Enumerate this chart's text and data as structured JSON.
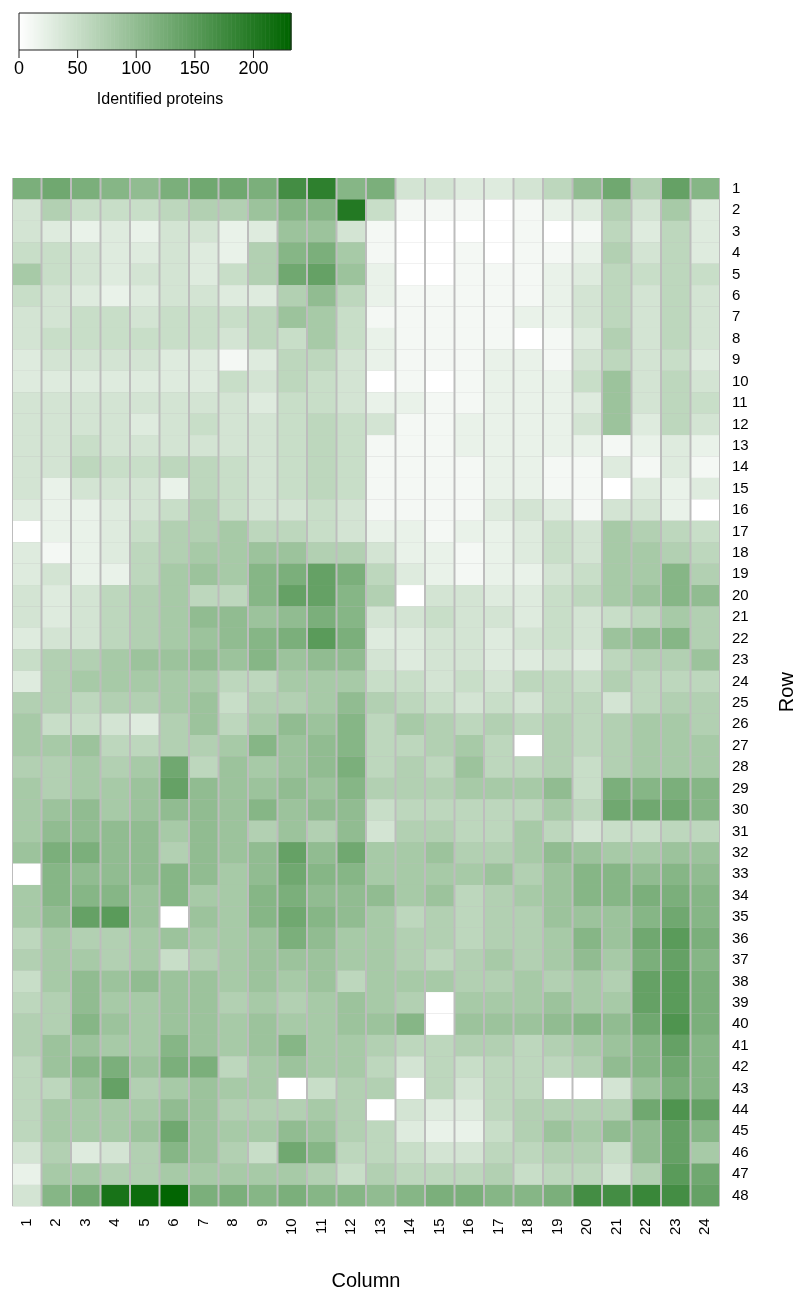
{
  "chart_data": {
    "type": "heatmap",
    "xlabel": "Column",
    "ylabel": "Row",
    "clabel": "Identified proteins",
    "clim": [
      0,
      232
    ],
    "cticks": [
      0,
      50,
      100,
      150,
      200
    ],
    "categories": [
      "1",
      "2",
      "3",
      "4",
      "5",
      "6",
      "7",
      "8",
      "9",
      "10",
      "11",
      "12",
      "13",
      "14",
      "15",
      "16",
      "17",
      "18",
      "19",
      "20",
      "21",
      "22",
      "23",
      "24"
    ],
    "y_categories": [
      "1",
      "2",
      "3",
      "4",
      "5",
      "6",
      "7",
      "8",
      "9",
      "10",
      "11",
      "12",
      "13",
      "14",
      "15",
      "16",
      "17",
      "18",
      "19",
      "20",
      "21",
      "22",
      "23",
      "24",
      "25",
      "26",
      "27",
      "28",
      "29",
      "30",
      "31",
      "32",
      "33",
      "34",
      "35",
      "36",
      "37",
      "38",
      "39",
      "40",
      "41",
      "42",
      "43",
      "44",
      "45",
      "46",
      "47",
      "48"
    ],
    "cells": [
      [
        120,
        130,
        120,
        110,
        100,
        120,
        130,
        130,
        120,
        170,
        190,
        110,
        120,
        40,
        40,
        30,
        30,
        40,
        60,
        100,
        130,
        70,
        140,
        110
      ],
      [
        40,
        70,
        50,
        50,
        50,
        60,
        70,
        70,
        90,
        110,
        110,
        200,
        50,
        10,
        10,
        10,
        0,
        10,
        20,
        30,
        70,
        40,
        80,
        30
      ],
      [
        40,
        30,
        20,
        30,
        20,
        40,
        40,
        20,
        30,
        90,
        90,
        40,
        10,
        0,
        0,
        0,
        0,
        10,
        0,
        10,
        60,
        30,
        60,
        30
      ],
      [
        50,
        50,
        40,
        30,
        30,
        40,
        30,
        20,
        70,
        110,
        120,
        80,
        10,
        0,
        0,
        10,
        0,
        10,
        10,
        20,
        70,
        40,
        60,
        30
      ],
      [
        80,
        50,
        40,
        30,
        40,
        40,
        30,
        50,
        70,
        130,
        140,
        90,
        20,
        0,
        0,
        10,
        10,
        10,
        20,
        30,
        60,
        50,
        60,
        50
      ],
      [
        50,
        40,
        30,
        20,
        30,
        40,
        40,
        30,
        30,
        70,
        100,
        60,
        20,
        10,
        10,
        10,
        10,
        10,
        20,
        40,
        60,
        40,
        60,
        40
      ],
      [
        40,
        40,
        50,
        50,
        40,
        50,
        50,
        50,
        60,
        90,
        80,
        50,
        10,
        10,
        10,
        10,
        10,
        20,
        20,
        40,
        60,
        40,
        60,
        40
      ],
      [
        40,
        50,
        50,
        50,
        50,
        50,
        50,
        40,
        60,
        50,
        80,
        50,
        20,
        10,
        10,
        10,
        10,
        0,
        10,
        30,
        70,
        40,
        60,
        40
      ],
      [
        30,
        40,
        40,
        40,
        40,
        30,
        30,
        10,
        30,
        60,
        60,
        40,
        20,
        10,
        10,
        10,
        20,
        20,
        10,
        40,
        60,
        40,
        50,
        30
      ],
      [
        30,
        30,
        30,
        30,
        30,
        30,
        30,
        50,
        40,
        60,
        50,
        40,
        0,
        10,
        0,
        10,
        20,
        20,
        20,
        50,
        90,
        40,
        60,
        40
      ],
      [
        40,
        40,
        40,
        40,
        40,
        40,
        40,
        40,
        30,
        50,
        50,
        40,
        20,
        20,
        10,
        10,
        20,
        20,
        20,
        30,
        90,
        40,
        60,
        50
      ],
      [
        40,
        40,
        40,
        40,
        30,
        40,
        50,
        40,
        40,
        50,
        60,
        50,
        40,
        10,
        10,
        20,
        20,
        20,
        20,
        40,
        90,
        30,
        60,
        40
      ],
      [
        40,
        40,
        50,
        40,
        40,
        40,
        40,
        40,
        40,
        50,
        60,
        50,
        10,
        10,
        10,
        20,
        20,
        20,
        20,
        20,
        10,
        20,
        30,
        20
      ],
      [
        40,
        40,
        60,
        50,
        50,
        60,
        60,
        50,
        40,
        50,
        60,
        50,
        10,
        10,
        10,
        10,
        20,
        20,
        10,
        10,
        30,
        10,
        30,
        10
      ],
      [
        40,
        20,
        40,
        40,
        40,
        20,
        60,
        50,
        40,
        50,
        60,
        50,
        10,
        10,
        10,
        10,
        20,
        20,
        10,
        10,
        0,
        30,
        20,
        30
      ],
      [
        30,
        20,
        20,
        30,
        40,
        50,
        70,
        50,
        40,
        40,
        50,
        40,
        10,
        10,
        10,
        10,
        30,
        40,
        30,
        10,
        40,
        40,
        20,
        0
      ],
      [
        0,
        20,
        20,
        30,
        50,
        70,
        70,
        80,
        60,
        60,
        50,
        40,
        20,
        20,
        10,
        20,
        20,
        30,
        50,
        40,
        80,
        70,
        60,
        50
      ],
      [
        30,
        10,
        20,
        30,
        60,
        70,
        80,
        80,
        90,
        90,
        70,
        70,
        40,
        20,
        20,
        10,
        20,
        30,
        50,
        40,
        80,
        80,
        70,
        60
      ],
      [
        30,
        40,
        20,
        20,
        60,
        80,
        90,
        80,
        110,
        120,
        140,
        120,
        60,
        30,
        20,
        10,
        20,
        20,
        40,
        50,
        80,
        80,
        110,
        70
      ],
      [
        40,
        30,
        40,
        60,
        70,
        80,
        60,
        60,
        110,
        140,
        140,
        110,
        70,
        0,
        40,
        40,
        30,
        30,
        50,
        60,
        80,
        90,
        110,
        100
      ],
      [
        40,
        30,
        40,
        60,
        70,
        80,
        100,
        100,
        90,
        100,
        120,
        110,
        40,
        40,
        50,
        40,
        40,
        30,
        50,
        40,
        50,
        60,
        80,
        70
      ],
      [
        30,
        40,
        40,
        60,
        70,
        80,
        90,
        100,
        110,
        120,
        150,
        120,
        30,
        30,
        40,
        40,
        30,
        40,
        50,
        40,
        90,
        100,
        110,
        70
      ],
      [
        50,
        70,
        70,
        80,
        90,
        90,
        100,
        90,
        110,
        90,
        100,
        100,
        40,
        30,
        40,
        40,
        30,
        30,
        40,
        30,
        60,
        70,
        70,
        90
      ],
      [
        30,
        70,
        80,
        80,
        80,
        80,
        80,
        60,
        60,
        80,
        80,
        80,
        50,
        50,
        40,
        50,
        40,
        60,
        60,
        50,
        70,
        60,
        60,
        60
      ],
      [
        70,
        70,
        60,
        70,
        70,
        80,
        90,
        50,
        70,
        70,
        80,
        100,
        70,
        60,
        50,
        40,
        50,
        40,
        60,
        60,
        40,
        60,
        70,
        70
      ],
      [
        80,
        50,
        50,
        40,
        30,
        70,
        90,
        60,
        80,
        100,
        90,
        110,
        60,
        80,
        70,
        60,
        70,
        60,
        70,
        60,
        70,
        80,
        80,
        70
      ],
      [
        80,
        80,
        90,
        60,
        60,
        70,
        70,
        80,
        110,
        90,
        100,
        110,
        60,
        60,
        70,
        80,
        60,
        0,
        70,
        60,
        70,
        80,
        80,
        80
      ],
      [
        70,
        70,
        80,
        70,
        80,
        130,
        60,
        90,
        80,
        90,
        100,
        120,
        60,
        70,
        60,
        90,
        60,
        60,
        70,
        50,
        70,
        80,
        80,
        80
      ],
      [
        80,
        70,
        80,
        80,
        90,
        140,
        100,
        90,
        90,
        100,
        90,
        110,
        70,
        70,
        70,
        80,
        80,
        80,
        100,
        50,
        120,
        110,
        120,
        110
      ],
      [
        80,
        90,
        100,
        80,
        90,
        100,
        100,
        90,
        110,
        90,
        100,
        100,
        50,
        60,
        60,
        60,
        60,
        60,
        80,
        60,
        130,
        130,
        130,
        110
      ],
      [
        80,
        100,
        100,
        100,
        100,
        80,
        100,
        90,
        70,
        90,
        70,
        100,
        40,
        70,
        70,
        60,
        60,
        80,
        60,
        40,
        50,
        50,
        60,
        60
      ],
      [
        90,
        120,
        120,
        100,
        100,
        70,
        100,
        90,
        100,
        140,
        100,
        130,
        80,
        80,
        90,
        70,
        70,
        80,
        100,
        90,
        80,
        80,
        90,
        90
      ],
      [
        0,
        110,
        100,
        100,
        100,
        110,
        100,
        80,
        100,
        130,
        110,
        110,
        80,
        80,
        80,
        80,
        90,
        70,
        90,
        110,
        110,
        100,
        110,
        100
      ],
      [
        80,
        110,
        110,
        110,
        90,
        110,
        80,
        80,
        110,
        120,
        100,
        100,
        100,
        80,
        90,
        60,
        70,
        80,
        90,
        110,
        110,
        120,
        120,
        110
      ],
      [
        80,
        100,
        140,
        150,
        90,
        0,
        90,
        80,
        110,
        130,
        110,
        100,
        80,
        60,
        70,
        60,
        70,
        70,
        90,
        90,
        90,
        110,
        130,
        110
      ],
      [
        60,
        80,
        70,
        70,
        80,
        90,
        80,
        80,
        90,
        120,
        100,
        80,
        80,
        70,
        70,
        60,
        70,
        70,
        80,
        110,
        90,
        130,
        150,
        120
      ],
      [
        70,
        80,
        80,
        70,
        80,
        50,
        70,
        80,
        90,
        90,
        90,
        80,
        80,
        70,
        60,
        70,
        80,
        70,
        80,
        100,
        80,
        120,
        140,
        110
      ],
      [
        50,
        80,
        100,
        90,
        100,
        90,
        90,
        80,
        90,
        80,
        90,
        60,
        80,
        80,
        80,
        70,
        70,
        80,
        70,
        80,
        70,
        140,
        150,
        120
      ],
      [
        60,
        70,
        100,
        80,
        80,
        90,
        90,
        70,
        80,
        70,
        80,
        90,
        80,
        70,
        0,
        80,
        80,
        80,
        90,
        80,
        80,
        140,
        150,
        120
      ],
      [
        70,
        70,
        110,
        90,
        80,
        90,
        90,
        80,
        90,
        80,
        80,
        90,
        90,
        110,
        0,
        90,
        90,
        90,
        100,
        110,
        100,
        130,
        160,
        120
      ],
      [
        70,
        90,
        90,
        80,
        80,
        110,
        90,
        80,
        90,
        110,
        80,
        80,
        70,
        60,
        60,
        70,
        70,
        60,
        70,
        80,
        90,
        110,
        140,
        110
      ],
      [
        60,
        90,
        110,
        120,
        90,
        120,
        120,
        60,
        80,
        90,
        80,
        80,
        60,
        40,
        60,
        50,
        60,
        60,
        60,
        70,
        100,
        110,
        130,
        110
      ],
      [
        60,
        60,
        90,
        140,
        70,
        80,
        90,
        80,
        80,
        0,
        50,
        70,
        70,
        0,
        60,
        40,
        60,
        60,
        0,
        0,
        40,
        90,
        120,
        110
      ],
      [
        60,
        80,
        80,
        80,
        80,
        100,
        90,
        70,
        70,
        70,
        80,
        70,
        0,
        40,
        30,
        30,
        60,
        70,
        70,
        70,
        70,
        130,
        160,
        140
      ],
      [
        60,
        80,
        80,
        80,
        90,
        130,
        90,
        80,
        80,
        100,
        90,
        70,
        60,
        30,
        20,
        20,
        50,
        70,
        90,
        80,
        100,
        100,
        140,
        110
      ],
      [
        40,
        70,
        30,
        40,
        70,
        110,
        90,
        70,
        50,
        130,
        110,
        60,
        60,
        50,
        40,
        40,
        60,
        60,
        70,
        70,
        50,
        100,
        140,
        80
      ],
      [
        20,
        80,
        80,
        70,
        70,
        80,
        80,
        80,
        80,
        80,
        70,
        50,
        70,
        60,
        60,
        60,
        70,
        50,
        60,
        60,
        40,
        70,
        150,
        130
      ],
      [
        40,
        110,
        130,
        210,
        220,
        230,
        120,
        120,
        110,
        120,
        110,
        110,
        100,
        110,
        120,
        120,
        110,
        110,
        120,
        170,
        170,
        180,
        170,
        140
      ]
    ]
  }
}
